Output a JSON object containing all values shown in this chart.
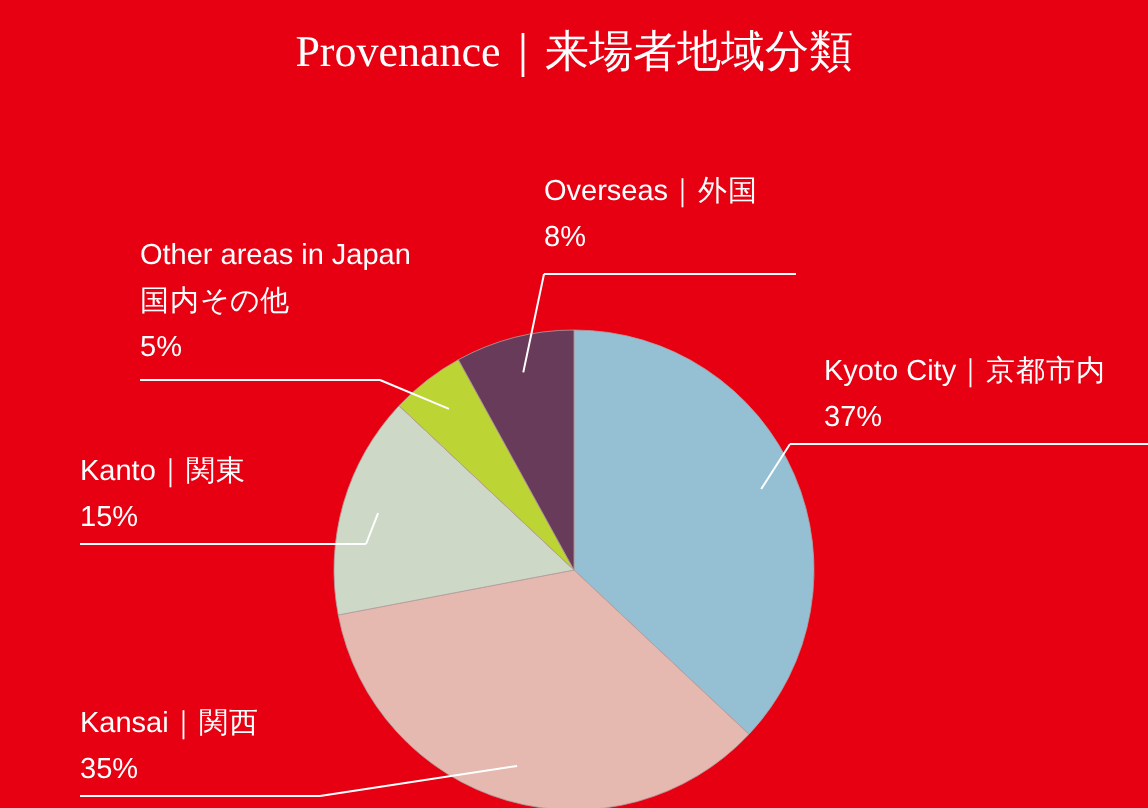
{
  "chart_data": {
    "type": "pie",
    "title": "Provenance｜来場者地域分類",
    "categories": [
      "Kyoto City｜京都市内",
      "Kansai｜関西",
      "Kanto｜関東",
      "Other areas in Japan\n国内その他",
      "Overseas｜外国"
    ],
    "values": [
      37,
      35,
      15,
      5,
      8
    ],
    "value_labels": [
      "37%",
      "35%",
      "15%",
      "5%",
      "8%"
    ],
    "colors": [
      "#95c0d4",
      "#e5b8b0",
      "#cdd9c6",
      "#bcd434",
      "#683b5a"
    ]
  }
}
